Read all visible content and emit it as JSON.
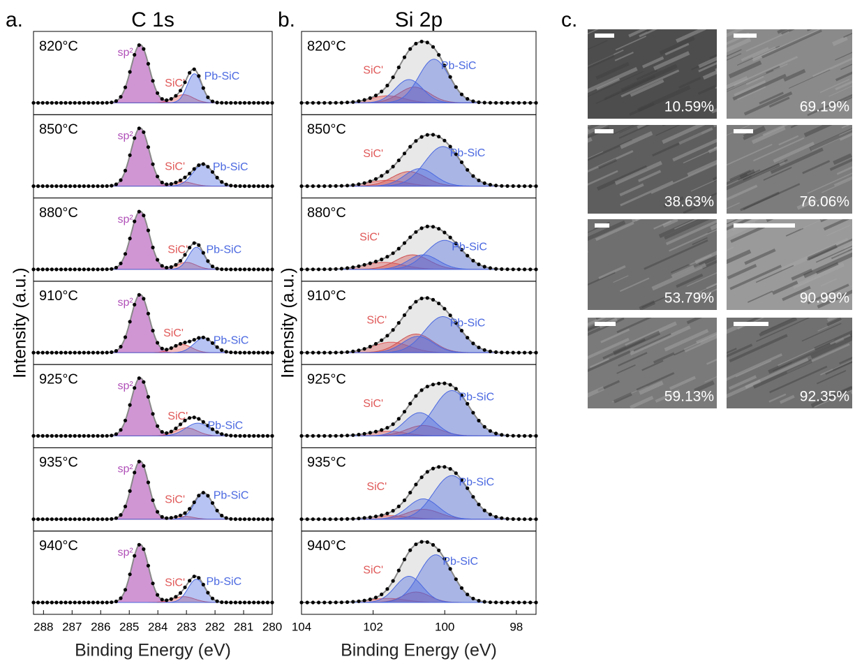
{
  "figure_labels": {
    "a": "a.",
    "b": "b.",
    "c": "c."
  },
  "chart_data": [
    {
      "type": "line",
      "title": "C 1s",
      "x_label": "Binding Energy (eV)",
      "y_label": "Intensity (a.u.)",
      "xlim": [
        288.35,
        280
      ],
      "xticks": [
        288,
        287,
        286,
        285,
        284,
        283,
        282,
        281,
        280
      ],
      "rows": [
        {
          "temperature": "820°C",
          "peaks": [
            {
              "name": "sp²",
              "color": "#b050b8",
              "center": 284.62,
              "height": 1.0,
              "fwhm": 0.75
            },
            {
              "name": "SiC'",
              "color": "#e05858",
              "center": 283.1,
              "height": 0.14,
              "fwhm": 0.8
            },
            {
              "name": "Pb-SiC",
              "color": "#4a68e0",
              "center": 282.72,
              "height": 0.5,
              "fwhm": 0.6
            }
          ]
        },
        {
          "temperature": "850°C",
          "peaks": [
            {
              "name": "sp²",
              "color": "#b050b8",
              "center": 284.62,
              "height": 1.0,
              "fwhm": 0.75
            },
            {
              "name": "SiC'",
              "color": "#e05858",
              "center": 283.1,
              "height": 0.07,
              "fwhm": 0.8
            },
            {
              "name": "Pb-SiC",
              "color": "#4a68e0",
              "center": 282.42,
              "height": 0.37,
              "fwhm": 0.85
            }
          ]
        },
        {
          "temperature": "880°C",
          "peaks": [
            {
              "name": "sp²",
              "color": "#b050b8",
              "center": 284.62,
              "height": 1.0,
              "fwhm": 0.75
            },
            {
              "name": "SiC'",
              "color": "#e05858",
              "center": 283.0,
              "height": 0.12,
              "fwhm": 0.8
            },
            {
              "name": "Pb-SiC",
              "color": "#4a68e0",
              "center": 282.65,
              "height": 0.38,
              "fwhm": 0.65
            }
          ]
        },
        {
          "temperature": "910°C",
          "peaks": [
            {
              "name": "sp²",
              "color": "#b050b8",
              "center": 284.62,
              "height": 1.0,
              "fwhm": 0.75
            },
            {
              "name": "SiC'",
              "color": "#e05858",
              "center": 283.15,
              "height": 0.14,
              "fwhm": 0.8
            },
            {
              "name": "Pb-SiC",
              "color": "#4a68e0",
              "center": 282.4,
              "height": 0.25,
              "fwhm": 0.8
            }
          ]
        },
        {
          "temperature": "925°C",
          "peaks": [
            {
              "name": "sp²",
              "color": "#b050b8",
              "center": 284.62,
              "height": 1.0,
              "fwhm": 0.75
            },
            {
              "name": "SiC'",
              "color": "#e05858",
              "center": 283.0,
              "height": 0.14,
              "fwhm": 0.9
            },
            {
              "name": "Pb-SiC",
              "color": "#4a68e0",
              "center": 282.6,
              "height": 0.22,
              "fwhm": 1.0
            }
          ]
        },
        {
          "temperature": "935°C",
          "peaks": [
            {
              "name": "sp²",
              "color": "#b050b8",
              "center": 284.62,
              "height": 1.0,
              "fwhm": 0.7
            },
            {
              "name": "SiC'",
              "color": "#e05858",
              "center": 283.1,
              "height": 0.05,
              "fwhm": 0.8
            },
            {
              "name": "Pb-SiC",
              "color": "#4a68e0",
              "center": 282.4,
              "height": 0.45,
              "fwhm": 0.75
            }
          ]
        },
        {
          "temperature": "940°C",
          "peaks": [
            {
              "name": "sp²",
              "color": "#b050b8",
              "center": 284.62,
              "height": 1.0,
              "fwhm": 0.7
            },
            {
              "name": "SiC'",
              "color": "#e05858",
              "center": 283.1,
              "height": 0.1,
              "fwhm": 0.9
            },
            {
              "name": "Pb-SiC",
              "color": "#4a68e0",
              "center": 282.65,
              "height": 0.4,
              "fwhm": 0.7
            }
          ]
        }
      ]
    },
    {
      "type": "line",
      "title": "Si 2p",
      "x_label": "Binding Energy (eV)",
      "y_label": "Intensity (a.u.)",
      "xlim": [
        104,
        97.45
      ],
      "xticks": [
        104,
        102,
        100,
        98
      ],
      "rows": [
        {
          "temperature": "820°C",
          "peaks": [
            {
              "name": "SiC'",
              "color": "#e05858",
              "center": 101.6,
              "height": 0.12,
              "fwhm": 1.1
            },
            {
              "color": "#d05050",
              "center": 100.85,
              "height": 0.27,
              "fwhm": 1.0
            },
            {
              "color": "#4a68e0",
              "center": 101.0,
              "height": 0.4,
              "fwhm": 0.9
            },
            {
              "name": "Pb-SiC",
              "color": "#4a68e0",
              "center": 100.3,
              "height": 0.75,
              "fwhm": 1.0
            }
          ]
        },
        {
          "temperature": "850°C",
          "peaks": [
            {
              "name": "SiC'",
              "color": "#e05858",
              "center": 101.6,
              "height": 0.1,
              "fwhm": 1.2
            },
            {
              "color": "#d05050",
              "center": 101.0,
              "height": 0.25,
              "fwhm": 1.1
            },
            {
              "color": "#4a68e0",
              "center": 100.7,
              "height": 0.3,
              "fwhm": 1.0
            },
            {
              "name": "Pb-SiC",
              "color": "#4a68e0",
              "center": 100.05,
              "height": 0.68,
              "fwhm": 1.2
            }
          ]
        },
        {
          "temperature": "880°C",
          "peaks": [
            {
              "name": "SiC'",
              "color": "#e05858",
              "center": 101.7,
              "height": 0.12,
              "fwhm": 1.3
            },
            {
              "color": "#d05050",
              "center": 100.9,
              "height": 0.25,
              "fwhm": 1.1
            },
            {
              "color": "#4a68e0",
              "center": 100.6,
              "height": 0.25,
              "fwhm": 1.0
            },
            {
              "name": "Pb-SiC",
              "color": "#4a68e0",
              "center": 100.0,
              "height": 0.5,
              "fwhm": 1.2
            }
          ]
        },
        {
          "temperature": "910°C",
          "peaks": [
            {
              "name": "SiC'",
              "color": "#e05858",
              "center": 101.5,
              "height": 0.18,
              "fwhm": 1.2
            },
            {
              "color": "#d05050",
              "center": 100.8,
              "height": 0.32,
              "fwhm": 1.1
            },
            {
              "color": "#4a68e0",
              "center": 100.75,
              "height": 0.28,
              "fwhm": 1.0
            },
            {
              "name": "Pb-SiC",
              "color": "#4a68e0",
              "center": 100.05,
              "height": 0.62,
              "fwhm": 1.2
            }
          ]
        },
        {
          "temperature": "925°C",
          "peaks": [
            {
              "name": "SiC'",
              "color": "#e05858",
              "center": 101.6,
              "height": 0.08,
              "fwhm": 1.2
            },
            {
              "color": "#d05050",
              "center": 100.6,
              "height": 0.18,
              "fwhm": 1.1
            },
            {
              "color": "#4a68e0",
              "center": 100.7,
              "height": 0.4,
              "fwhm": 1.0
            },
            {
              "name": "Pb-SiC",
              "color": "#4a68e0",
              "center": 99.8,
              "height": 0.78,
              "fwhm": 1.2
            }
          ]
        },
        {
          "temperature": "935°C",
          "peaks": [
            {
              "name": "SiC'",
              "color": "#e05858",
              "center": 101.5,
              "height": 0.06,
              "fwhm": 1.2
            },
            {
              "color": "#d05050",
              "center": 100.6,
              "height": 0.17,
              "fwhm": 1.1
            },
            {
              "color": "#4a68e0",
              "center": 100.6,
              "height": 0.35,
              "fwhm": 1.0
            },
            {
              "name": "Pb-SiC",
              "color": "#4a68e0",
              "center": 99.8,
              "height": 0.75,
              "fwhm": 1.2
            }
          ]
        },
        {
          "temperature": "940°C",
          "peaks": [
            {
              "name": "SiC'",
              "color": "#e05858",
              "center": 101.6,
              "height": 0.07,
              "fwhm": 1.2
            },
            {
              "color": "#d05050",
              "center": 100.8,
              "height": 0.18,
              "fwhm": 0.9
            },
            {
              "color": "#4a68e0",
              "center": 101.0,
              "height": 0.45,
              "fwhm": 0.9
            },
            {
              "name": "Pb-SiC",
              "color": "#4a68e0",
              "center": 100.25,
              "height": 0.82,
              "fwhm": 1.1
            }
          ]
        }
      ]
    }
  ],
  "images": [
    {
      "coverage": "10.59%"
    },
    {
      "coverage": "69.19%"
    },
    {
      "coverage": "38.63%"
    },
    {
      "coverage": "76.06%"
    },
    {
      "coverage": "53.79%"
    },
    {
      "coverage": "90.99%"
    },
    {
      "coverage": "59.13%"
    },
    {
      "coverage": "92.35%"
    }
  ]
}
